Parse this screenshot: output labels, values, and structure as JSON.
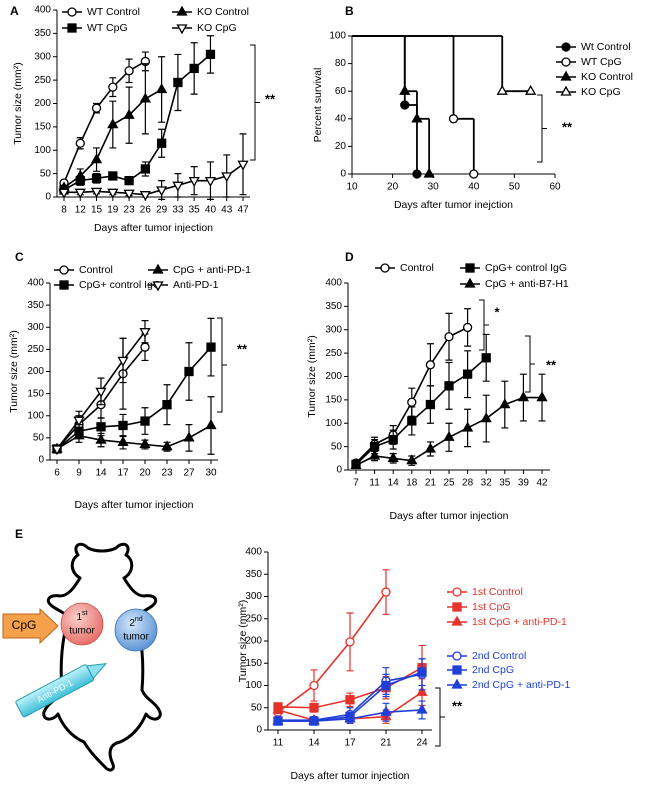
{
  "chart_data": [
    {
      "type": "line",
      "label": "A",
      "categories": [
        "8",
        "12",
        "15",
        "19",
        "23",
        "26",
        "29",
        "33",
        "35",
        "40",
        "43",
        "47"
      ],
      "ylim": [
        0,
        400
      ],
      "yticks": [
        0,
        50,
        100,
        150,
        200,
        250,
        300,
        350,
        400
      ],
      "ylabel": "Tumor size (mm²)",
      "xlabel": "Days after tumor injection",
      "annotations": [
        "**"
      ],
      "series": [
        {
          "name": "WT Control",
          "color": "#000000",
          "marker": "circle-open",
          "values": [
            30,
            115,
            190,
            235,
            270,
            290,
            null,
            null,
            null,
            null,
            null,
            null
          ],
          "errors": [
            5,
            12,
            10,
            20,
            25,
            20,
            null,
            null,
            null,
            null,
            null,
            null
          ]
        },
        {
          "name": "WT CpG",
          "color": "#000000",
          "marker": "square-filled",
          "values": [
            15,
            35,
            40,
            45,
            35,
            60,
            115,
            245,
            275,
            305,
            null,
            null
          ],
          "errors": [
            5,
            10,
            10,
            8,
            8,
            15,
            30,
            60,
            55,
            40,
            null,
            null
          ]
        },
        {
          "name": "KO Control",
          "color": "#000000",
          "marker": "triangle-filled",
          "values": [
            20,
            45,
            80,
            155,
            175,
            210,
            230,
            null,
            null,
            null,
            null,
            null
          ],
          "errors": [
            5,
            15,
            25,
            50,
            60,
            75,
            70,
            null,
            null,
            null,
            null,
            null
          ]
        },
        {
          "name": "KO CpG",
          "color": "#000000",
          "marker": "triangle-down-open",
          "values": [
            10,
            10,
            12,
            10,
            8,
            5,
            15,
            25,
            35,
            35,
            45,
            70
          ],
          "errors": [
            3,
            5,
            5,
            5,
            5,
            5,
            20,
            25,
            30,
            40,
            45,
            65
          ]
        }
      ]
    },
    {
      "type": "step",
      "label": "B",
      "xlim": [
        10,
        60
      ],
      "xticks": [
        10,
        20,
        30,
        40,
        50,
        60
      ],
      "ylim": [
        0,
        100
      ],
      "yticks": [
        0,
        20,
        40,
        60,
        80,
        100
      ],
      "ylabel": "Percent survival",
      "xlabel": "Days after tumor inejction",
      "annotations": [
        "**"
      ],
      "series": [
        {
          "name": "Wt Control",
          "color": "#000000",
          "marker": "circle-filled",
          "x": [
            10,
            23,
            26
          ],
          "values": [
            100,
            50,
            0
          ]
        },
        {
          "name": "WT CpG",
          "color": "#000000",
          "marker": "circle-open",
          "x": [
            10,
            35,
            40
          ],
          "values": [
            100,
            40,
            0
          ]
        },
        {
          "name": "KO Control",
          "color": "#000000",
          "marker": "triangle-filled",
          "x": [
            10,
            23,
            26,
            29
          ],
          "values": [
            100,
            60,
            40,
            0
          ]
        },
        {
          "name": "KO CpG",
          "color": "#000000",
          "marker": "triangle-open",
          "x": [
            10,
            47,
            54
          ],
          "values": [
            100,
            60,
            60
          ]
        }
      ]
    },
    {
      "type": "line",
      "label": "C",
      "categories": [
        "6",
        "9",
        "14",
        "17",
        "20",
        "23",
        "27",
        "30"
      ],
      "ylim": [
        0,
        400
      ],
      "yticks": [
        0,
        50,
        100,
        150,
        200,
        250,
        300,
        350,
        400
      ],
      "ylabel": "Tumor size (mm²)",
      "xlabel": "Days after tumor injection",
      "annotations": [
        "**"
      ],
      "series": [
        {
          "name": "Control",
          "color": "#000000",
          "marker": "circle-open",
          "values": [
            25,
            80,
            125,
            195,
            255,
            null,
            null,
            null
          ],
          "errors": [
            8,
            20,
            30,
            80,
            30,
            null,
            null,
            null
          ]
        },
        {
          "name": "CpG+ control IgG",
          "color": "#000000",
          "marker": "square-filled",
          "values": [
            25,
            65,
            75,
            78,
            88,
            125,
            200,
            255
          ],
          "errors": [
            5,
            15,
            20,
            25,
            30,
            45,
            65,
            65
          ]
        },
        {
          "name": "CpG + anti-PD-1",
          "color": "#000000",
          "marker": "triangle-filled",
          "values": [
            25,
            55,
            45,
            40,
            35,
            30,
            50,
            78
          ],
          "errors": [
            5,
            15,
            15,
            15,
            10,
            10,
            30,
            65
          ]
        },
        {
          "name": "Anti-PD-1",
          "color": "#000000",
          "marker": "triangle-down-open",
          "values": [
            25,
            90,
            155,
            225,
            290,
            null,
            null,
            null
          ],
          "errors": [
            5,
            20,
            30,
            50,
            25,
            null,
            null,
            null
          ]
        }
      ]
    },
    {
      "type": "line",
      "label": "D",
      "categories": [
        "7",
        "11",
        "14",
        "18",
        "21",
        "25",
        "28",
        "32",
        "35",
        "39",
        "42"
      ],
      "ylim": [
        0,
        400
      ],
      "yticks": [
        0,
        50,
        100,
        150,
        200,
        250,
        300,
        350,
        400
      ],
      "ylabel": "Tumor size (mm²)",
      "xlabel": "Days after tumor injection",
      "annotations": [
        "*",
        "**"
      ],
      "series": [
        {
          "name": "Control",
          "color": "#000000",
          "marker": "circle-open",
          "values": [
            15,
            55,
            75,
            145,
            225,
            285,
            305,
            null,
            null,
            null,
            null
          ],
          "errors": [
            5,
            15,
            20,
            30,
            45,
            50,
            40,
            null,
            null,
            null,
            null
          ]
        },
        {
          "name": "CpG+ control IgG",
          "color": "#000000",
          "marker": "square-filled",
          "values": [
            12,
            50,
            65,
            105,
            140,
            180,
            205,
            240,
            null,
            null,
            null
          ],
          "errors": [
            5,
            15,
            20,
            30,
            40,
            50,
            50,
            50,
            null,
            null,
            null
          ]
        },
        {
          "name": "CpG + anti-B7-H1",
          "color": "#000000",
          "marker": "triangle-filled",
          "values": [
            10,
            30,
            25,
            20,
            45,
            70,
            90,
            110,
            140,
            155,
            155
          ],
          "errors": [
            3,
            10,
            10,
            10,
            15,
            30,
            40,
            50,
            50,
            50,
            50
          ]
        }
      ]
    },
    {
      "type": "line",
      "label": "E",
      "categories": [
        "11",
        "14",
        "17",
        "21",
        "24"
      ],
      "ylim": [
        0,
        400
      ],
      "yticks": [
        0,
        50,
        100,
        150,
        200,
        250,
        300,
        350,
        400
      ],
      "ylabel": "Tumor size (mm²)",
      "xlabel": "Days after tumor injection",
      "annotations": [
        "**"
      ],
      "series": [
        {
          "name": "1st Control",
          "color": "#e5322a",
          "marker": "circle-open",
          "values": [
            40,
            100,
            198,
            310,
            null
          ],
          "errors": [
            10,
            35,
            65,
            50,
            null
          ]
        },
        {
          "name": "1st CpG",
          "color": "#e5322a",
          "marker": "square-filled",
          "values": [
            52,
            50,
            68,
            95,
            140
          ],
          "errors": [
            8,
            10,
            15,
            25,
            50
          ]
        },
        {
          "name": "1st  CpG + anti-PD-1",
          "color": "#e5322a",
          "marker": "triangle-filled",
          "values": [
            45,
            22,
            25,
            30,
            85
          ],
          "errors": [
            8,
            8,
            10,
            15,
            30
          ]
        },
        {
          "name": "2nd Control",
          "color": "#1f3fd6",
          "marker": "circle-open",
          "values": [
            22,
            22,
            35,
            110,
            125
          ],
          "errors": [
            5,
            5,
            15,
            30,
            35
          ]
        },
        {
          "name": "2nd CpG",
          "color": "#1f3fd6",
          "marker": "square-filled",
          "values": [
            20,
            20,
            30,
            100,
            130
          ],
          "errors": [
            5,
            5,
            10,
            25,
            30
          ]
        },
        {
          "name": "2nd CpG + anti-PD-1",
          "color": "#1f3fd6",
          "marker": "triangle-filled",
          "values": [
            20,
            20,
            25,
            40,
            45
          ],
          "errors": [
            5,
            5,
            10,
            20,
            20
          ]
        }
      ]
    }
  ],
  "diagram": {
    "injection_1": "CpG",
    "injection_2": "Anti-PD-1",
    "tumor_1": {
      "number": "1",
      "suffix": "st",
      "word": "tumor"
    },
    "tumor_2": {
      "number": "2",
      "suffix": "nd",
      "word": "tumor"
    }
  }
}
